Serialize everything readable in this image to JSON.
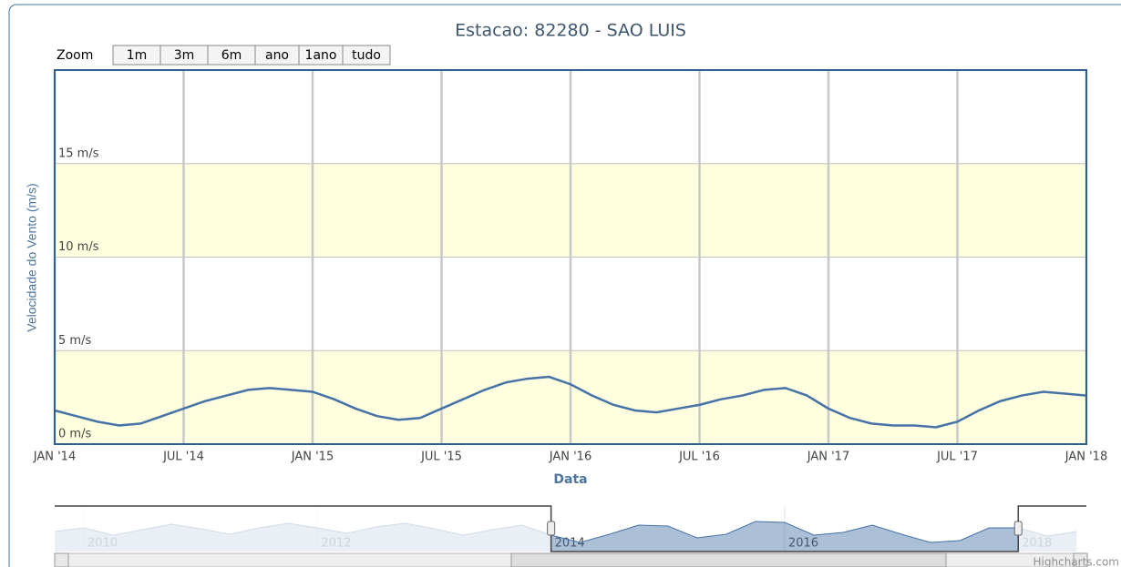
{
  "chart_data": {
    "type": "line",
    "title": "Estacao: 82280 - SAO LUIS",
    "zoom_label": "Zoom",
    "zoom_buttons": [
      "1m",
      "3m",
      "6m",
      "ano",
      "1ano",
      "tudo"
    ],
    "y_axis_label": "Velocidade do Vento (m/s)",
    "x_axis_label": "Data",
    "credits": "Highcharts.com",
    "x": [
      "2014-01",
      "2014-02",
      "2014-03",
      "2014-04",
      "2014-05",
      "2014-06",
      "2014-07",
      "2014-08",
      "2014-09",
      "2014-10",
      "2014-11",
      "2014-12",
      "2015-01",
      "2015-02",
      "2015-03",
      "2015-04",
      "2015-05",
      "2015-06",
      "2015-07",
      "2015-08",
      "2015-09",
      "2015-10",
      "2015-11",
      "2015-12",
      "2016-01",
      "2016-02",
      "2016-03",
      "2016-04",
      "2016-05",
      "2016-06",
      "2016-07",
      "2016-08",
      "2016-09",
      "2016-10",
      "2016-11",
      "2016-12",
      "2017-01",
      "2017-02",
      "2017-03",
      "2017-04",
      "2017-05",
      "2017-06",
      "2017-07",
      "2017-08",
      "2017-09",
      "2017-10",
      "2017-11",
      "2017-12",
      "2018-01"
    ],
    "series": [
      {
        "name": "Velocidade do Vento",
        "color": "#4572a7",
        "values": [
          1.8,
          1.5,
          1.2,
          1.0,
          1.1,
          1.5,
          1.9,
          2.3,
          2.6,
          2.9,
          3.0,
          2.9,
          2.8,
          2.4,
          1.9,
          1.5,
          1.3,
          1.4,
          1.9,
          2.4,
          2.9,
          3.3,
          3.5,
          3.6,
          3.2,
          2.6,
          2.1,
          1.8,
          1.7,
          1.9,
          2.1,
          2.4,
          2.6,
          2.9,
          3.0,
          2.6,
          1.9,
          1.4,
          1.1,
          1.0,
          1.0,
          0.9,
          1.2,
          1.8,
          2.3,
          2.6,
          2.8,
          2.7,
          2.6
        ]
      }
    ],
    "xlim": [
      "2014-01",
      "2018-01"
    ],
    "xticks": [
      {
        "value": "2014-01",
        "label": "JAN '14"
      },
      {
        "value": "2014-07",
        "label": "JUL '14"
      },
      {
        "value": "2015-01",
        "label": "JAN '15"
      },
      {
        "value": "2015-07",
        "label": "JUL '15"
      },
      {
        "value": "2016-01",
        "label": "JAN '16"
      },
      {
        "value": "2016-07",
        "label": "JUL '16"
      },
      {
        "value": "2017-01",
        "label": "JAN '17"
      },
      {
        "value": "2017-07",
        "label": "JUL '17"
      },
      {
        "value": "2018-01",
        "label": "JAN '18"
      }
    ],
    "ylim": [
      0,
      20
    ],
    "yticks": [
      {
        "value": 0,
        "label": "0 m/s"
      },
      {
        "value": 5,
        "label": "5 m/s"
      },
      {
        "value": 10,
        "label": "10 m/s"
      },
      {
        "value": 15,
        "label": "15 m/s"
      }
    ],
    "plot_bands": [
      [
        0,
        5
      ],
      [
        10,
        15
      ]
    ],
    "plot_band_color": "#ffffe0",
    "navigator": {
      "x": [
        "2009-10",
        "2010-01",
        "2010-04",
        "2010-07",
        "2010-10",
        "2011-01",
        "2011-04",
        "2011-07",
        "2011-10",
        "2012-01",
        "2012-04",
        "2012-07",
        "2012-10",
        "2013-01",
        "2013-04",
        "2013-07",
        "2013-10",
        "2014-01",
        "2014-04",
        "2014-07",
        "2014-10",
        "2015-01",
        "2015-04",
        "2015-07",
        "2015-10",
        "2016-01",
        "2016-04",
        "2016-07",
        "2016-10",
        "2017-01",
        "2017-04",
        "2017-07",
        "2017-10",
        "2018-01",
        "2018-04",
        "2018-07"
      ],
      "values": [
        2.2,
        2.6,
        1.8,
        2.4,
        3.0,
        2.5,
        1.9,
        2.6,
        3.1,
        2.6,
        2.0,
        2.7,
        3.1,
        2.5,
        1.8,
        2.4,
        2.9,
        1.8,
        1.0,
        1.9,
        2.9,
        2.8,
        1.5,
        1.9,
        3.3,
        3.2,
        1.8,
        2.1,
        2.9,
        1.9,
        1.0,
        1.2,
        2.6,
        2.6,
        1.7,
        2.2
      ],
      "xlim": [
        "2009-10",
        "2018-08"
      ],
      "ylim": [
        0,
        5
      ],
      "xticks": [
        "2010-01",
        "2012-01",
        "2014-01",
        "2016-01",
        "2018-01"
      ],
      "tick_labels": [
        "2010",
        "2012",
        "2014",
        "2016",
        "2018"
      ],
      "selection": [
        "2014-01",
        "2018-01"
      ]
    }
  }
}
